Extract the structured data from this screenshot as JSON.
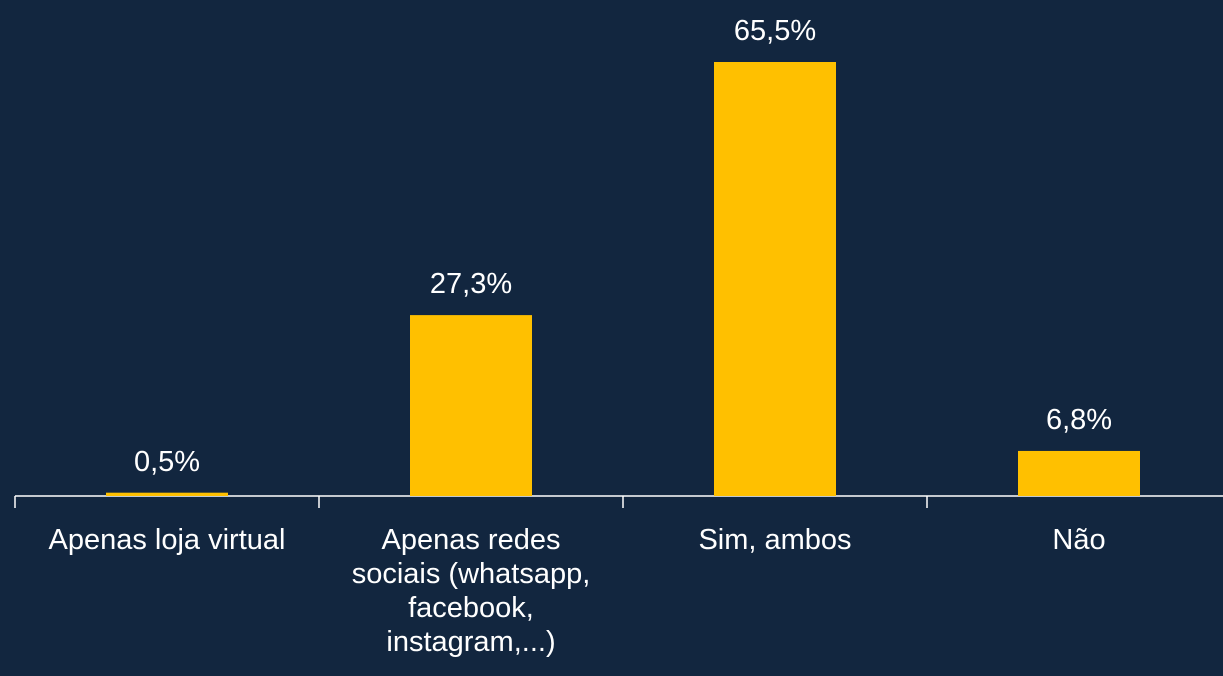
{
  "chart_data": {
    "type": "bar",
    "categories": [
      "Apenas loja virtual",
      "Apenas redes sociais (whatsapp, facebook, instagram,...)",
      "Sim, ambos",
      "Não"
    ],
    "values": [
      0.5,
      27.3,
      65.5,
      6.8
    ],
    "value_labels": [
      "0,5%",
      "27,3%",
      "65,5%",
      "6,8%"
    ],
    "color": "#ffc000"
  }
}
